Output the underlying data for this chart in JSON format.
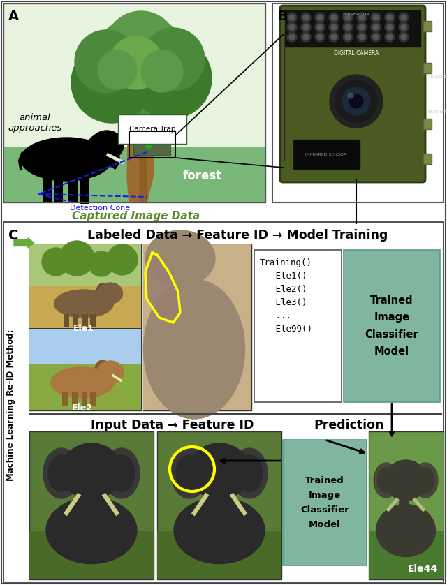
{
  "fig_width": 6.4,
  "fig_height": 8.38,
  "dpi": 100,
  "bg_color": "#ffffff",
  "teal_color": "#80b5a0",
  "panel_A_label": "A",
  "panel_B_label": "B",
  "panel_C_label": "C",
  "animal_text": "animal\napproaches",
  "camera_trap_text": "Camera Trap",
  "forest_text": "forest",
  "detection_cone_text": "Detection Cone",
  "captured_image_text": "Captured Image Data",
  "labeled_data_text": "Labeled Data",
  "feature_id_text": "Feature ID",
  "model_training_text": "Model Training",
  "input_data_text": "Input Data",
  "prediction_text": "Prediction",
  "ml_method_text": "Machine Learning Re-ID Method:",
  "ele1_text": "Ele1",
  "ele2_text": "Ele2",
  "ele44_text": "Ele44",
  "training_code": "Training()\n   Ele1()\n   Ele2()\n   Ele3()\n   ...\n   Ele99()",
  "trained_classifier_text": "Trained\nImage\nClassifier\nModel",
  "dashed_blue": "#1a1aee",
  "tree_brown": "#9b6b2f",
  "tree_green_dark": "#4a7a3a",
  "tree_green_light": "#6aaa4a",
  "ground_green": "#7ab87a",
  "sky_color": "#e8f4e8",
  "camera_green": "#4a5a20",
  "camera_dark": "#2a3a10"
}
